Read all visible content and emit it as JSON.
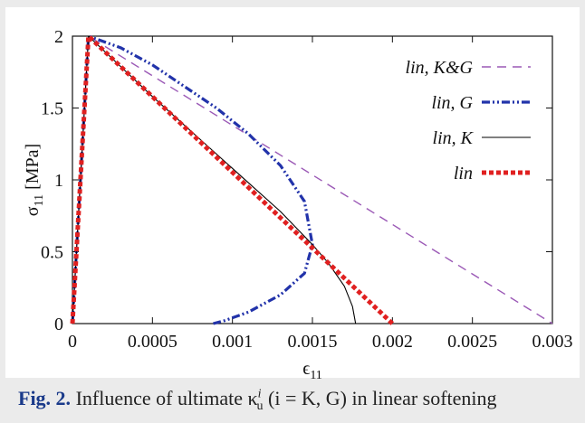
{
  "chart_data": {
    "type": "line",
    "xlabel": "ϵ11",
    "ylabel": "σ11 [MPa]",
    "xlim": [
      0,
      0.003
    ],
    "ylim": [
      0,
      2
    ],
    "x_ticks": [
      "0",
      "0.0005",
      "0.001",
      "0.0015",
      "0.002",
      "0.0025",
      "0.003"
    ],
    "y_ticks": [
      "0",
      "0.5",
      "1",
      "1.5",
      "2"
    ],
    "legend_position": "top-right",
    "series": [
      {
        "name": "lin, K&G",
        "color": "#9b59b6",
        "style": "dashed",
        "x": [
          0,
          0.0001,
          0.003
        ],
        "y": [
          0,
          2,
          0
        ]
      },
      {
        "name": "lin, G",
        "color": "#2233aa",
        "style": "dash-dot-dot",
        "x": [
          0,
          0.0001,
          0.0003,
          0.0005,
          0.0007,
          0.0009,
          0.0011,
          0.0013,
          0.00145,
          0.0015,
          0.00145,
          0.0013,
          0.0011,
          0.00095,
          0.00088
        ],
        "y": [
          0,
          2,
          1.92,
          1.8,
          1.65,
          1.5,
          1.32,
          1.1,
          0.85,
          0.55,
          0.35,
          0.2,
          0.08,
          0.02,
          0
        ]
      },
      {
        "name": "lin, K",
        "color": "#000000",
        "style": "solid",
        "x": [
          0,
          0.0001,
          0.0003,
          0.0005,
          0.0007,
          0.0009,
          0.0011,
          0.0013,
          0.0015,
          0.0016,
          0.0017,
          0.00175,
          0.00177
        ],
        "y": [
          0,
          2,
          1.79,
          1.58,
          1.38,
          1.18,
          0.98,
          0.78,
          0.55,
          0.42,
          0.26,
          0.12,
          0
        ]
      },
      {
        "name": "lin",
        "color": "#e02020",
        "style": "dotted-thick",
        "x": [
          0,
          0.0001,
          0.002
        ],
        "y": [
          0,
          2,
          0
        ]
      }
    ]
  },
  "caption": {
    "fig_label": "Fig. 2.",
    "text_before": " Influence of ultimate ",
    "kappa": "κ",
    "sup": "i",
    "sub": "u",
    "text_after": " (i = K, G) in linear softening"
  }
}
